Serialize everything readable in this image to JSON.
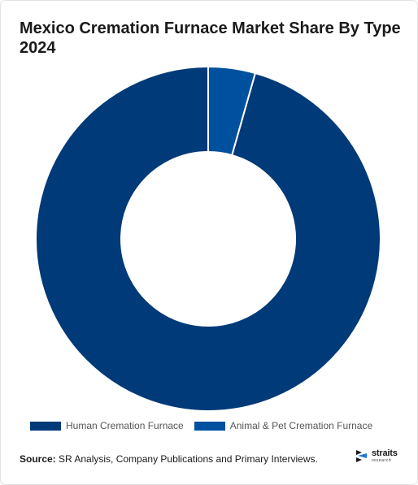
{
  "chart_data": {
    "type": "pie",
    "title": "Mexico Cremation Furnace Market Share By Type 2024",
    "donut": true,
    "categories": [
      "Human Cremation Furnace",
      "Animal & Pet Cremation Furnace"
    ],
    "values": [
      95.6,
      4.4
    ],
    "colors": [
      "#003a78",
      "#0050a0"
    ],
    "legend_position": "bottom"
  },
  "source": {
    "label": "Source:",
    "text": " SR Analysis, Company Publications and Primary Interviews."
  },
  "brand": {
    "name": "straits",
    "sub": "research"
  }
}
